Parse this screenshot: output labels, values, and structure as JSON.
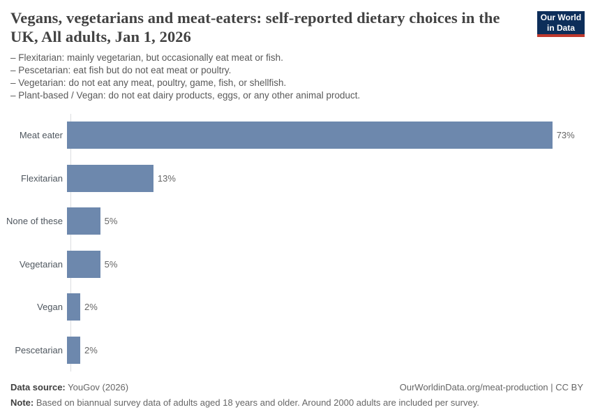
{
  "logo": {
    "line1": "Our World",
    "line2": "in Data",
    "bg_color": "#0d2e5a",
    "stripe_color": "#c0392e"
  },
  "header": {
    "title": "Vegans, vegetarians and meat-eaters: self-reported dietary choices in the UK, All adults, Jan 1, 2026",
    "subtitle_lines": [
      "– Flexitarian: mainly vegetarian, but occasionally eat meat or fish.",
      "– Pescetarian: eat fish but do not eat meat or poultry.",
      "– Vegetarian: do not eat any meat, poultry, game, fish, or shellfish.",
      "– Plant-based / Vegan: do not eat dairy products, eggs, or any other animal product."
    ]
  },
  "chart_data": {
    "type": "bar",
    "orientation": "horizontal",
    "title": "Vegans, vegetarians and meat-eaters: self-reported dietary choices in the UK, All adults, Jan 1, 2026",
    "categories": [
      "Meat eater",
      "Flexitarian",
      "None of these",
      "Vegetarian",
      "Vegan",
      "Pescetarian"
    ],
    "values": [
      73,
      13,
      5,
      5,
      2,
      2
    ],
    "value_labels": [
      "73%",
      "13%",
      "5%",
      "5%",
      "2%",
      "2%"
    ],
    "unit": "%",
    "xlabel": "",
    "ylabel": "",
    "xlim": [
      0,
      77
    ],
    "bar_color": "#6d88ad",
    "grid": false,
    "legend": false
  },
  "footer": {
    "source_label": "Data source:",
    "source_value": "YouGov (2026)",
    "link_text": "OurWorldinData.org/meat-production | CC BY",
    "note_label": "Note:",
    "note_value": "Based on biannual survey data of adults aged 18 years and older. Around 2000 adults are included per survey."
  }
}
